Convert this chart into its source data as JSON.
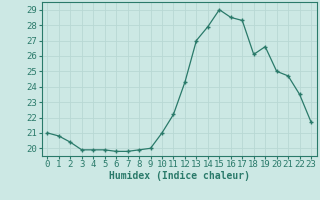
{
  "x": [
    0,
    1,
    2,
    3,
    4,
    5,
    6,
    7,
    8,
    9,
    10,
    11,
    12,
    13,
    14,
    15,
    16,
    17,
    18,
    19,
    20,
    21,
    22,
    23
  ],
  "y": [
    21.0,
    20.8,
    20.4,
    19.9,
    19.9,
    19.9,
    19.8,
    19.8,
    19.9,
    20.0,
    21.0,
    22.2,
    24.3,
    27.0,
    27.9,
    29.0,
    28.5,
    28.3,
    26.1,
    26.6,
    25.0,
    24.7,
    23.5,
    21.7
  ],
  "line_color": "#2a7a6a",
  "marker": "+",
  "marker_size": 3.5,
  "line_width": 0.9,
  "background_color": "#cce8e4",
  "grid_color": "#b8d8d4",
  "xlabel": "Humidex (Indice chaleur)",
  "xlabel_fontsize": 7,
  "tick_fontsize": 6.5,
  "ylim": [
    19.5,
    29.5
  ],
  "xlim": [
    -0.5,
    23.5
  ],
  "yticks": [
    20,
    21,
    22,
    23,
    24,
    25,
    26,
    27,
    28,
    29
  ],
  "xticks": [
    0,
    1,
    2,
    3,
    4,
    5,
    6,
    7,
    8,
    9,
    10,
    11,
    12,
    13,
    14,
    15,
    16,
    17,
    18,
    19,
    20,
    21,
    22,
    23
  ]
}
